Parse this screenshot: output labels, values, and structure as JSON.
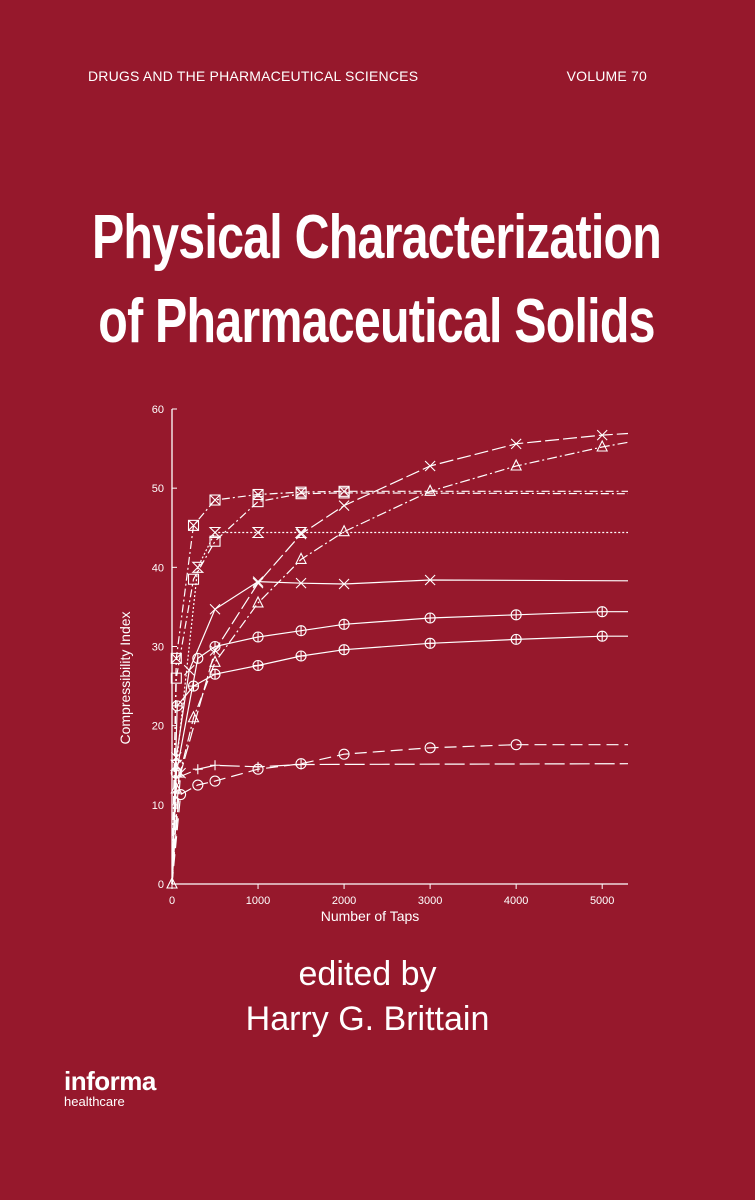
{
  "series_name": "DRUGS AND THE PHARMACEUTICAL SCIENCES",
  "volume": "VOLUME 70",
  "title_line1": "Physical Characterization",
  "title_line2": "of Pharmaceutical Solids",
  "edited_by": "edited by",
  "editor": "Harry G. Brittain",
  "publisher": {
    "name": "informa",
    "division": "healthcare"
  },
  "colors": {
    "background": "#96182c",
    "ink": "#ffffff"
  },
  "chart_data": {
    "type": "line",
    "title": "",
    "xlabel": "Number of Taps",
    "ylabel": "Compressibility Index",
    "xlim": [
      0,
      5300
    ],
    "ylim": [
      0,
      60
    ],
    "xticks": [
      0,
      1000,
      2000,
      3000,
      4000,
      5000
    ],
    "yticks": [
      0,
      10,
      20,
      30,
      40,
      50,
      60
    ],
    "grid": false,
    "series": [
      {
        "marker": "boxed-x",
        "dash": "8 3 2 3",
        "x": [
          0,
          50,
          250,
          500,
          1000,
          1500,
          2000,
          5300
        ],
        "y": [
          0,
          28.5,
          45.3,
          48.5,
          49.2,
          49.5,
          49.6,
          49.6
        ]
      },
      {
        "marker": "square",
        "dash": "8 3 2 3",
        "x": [
          0,
          50,
          250,
          500,
          1000,
          1500,
          2000,
          5300
        ],
        "y": [
          0,
          26,
          38.5,
          43.3,
          48.3,
          49.3,
          49.4,
          49.3
        ]
      },
      {
        "marker": "hourglass",
        "dash": "2 2",
        "x": [
          0,
          50,
          300,
          500,
          1000,
          1500,
          5300
        ],
        "y": [
          0,
          15,
          40,
          44.4,
          44.4,
          44.4,
          44.4
        ]
      },
      {
        "marker": "x",
        "dash": "",
        "x": [
          0,
          50,
          200,
          500,
          1000,
          1500,
          2000,
          3000,
          5300
        ],
        "y": [
          0,
          16,
          27,
          34.7,
          38.2,
          38,
          37.9,
          38.4,
          38.3
        ]
      },
      {
        "marker": "triangle",
        "dash": "10 3 2 3",
        "x": [
          0,
          50,
          250,
          500,
          1000,
          1500,
          2000,
          3000,
          4000,
          5000,
          5300
        ],
        "y": [
          0,
          12,
          21,
          28,
          35.5,
          41,
          44.5,
          49.6,
          52.8,
          55.2,
          55.8
        ]
      },
      {
        "marker": "x",
        "dash": "14 4",
        "x": [
          0,
          100,
          500,
          1000,
          1500,
          2000,
          3000,
          4000,
          5000,
          5300
        ],
        "y": [
          0,
          14,
          29.5,
          38,
          44.2,
          47.8,
          52.8,
          55.6,
          56.7,
          56.9
        ]
      },
      {
        "marker": "circle-dot",
        "dash": "",
        "x": [
          0,
          50,
          300,
          500,
          1000,
          1500,
          2000,
          3000,
          4000,
          5000,
          5300
        ],
        "y": [
          0,
          14,
          28.5,
          30,
          31.2,
          32,
          32.8,
          33.6,
          34,
          34.4,
          34.4
        ]
      },
      {
        "marker": "circle-plus",
        "dash": "",
        "x": [
          0,
          60,
          250,
          500,
          1000,
          1500,
          2000,
          3000,
          4000,
          5000,
          5300
        ],
        "y": [
          0,
          22.5,
          25,
          26.5,
          27.6,
          28.8,
          29.6,
          30.4,
          30.9,
          31.3,
          31.3
        ]
      },
      {
        "marker": "plus",
        "dash": "20 5",
        "x": [
          0,
          80,
          300,
          500,
          1000,
          1500,
          5300
        ],
        "y": [
          0,
          13.5,
          14.5,
          15,
          14.8,
          15.1,
          15.2
        ]
      },
      {
        "marker": "circle",
        "dash": "12 6",
        "x": [
          0,
          100,
          300,
          500,
          1000,
          1500,
          2000,
          3000,
          4000,
          5300
        ],
        "y": [
          0,
          11.3,
          12.5,
          13,
          14.5,
          15.2,
          16.4,
          17.2,
          17.6,
          17.6
        ]
      }
    ]
  }
}
